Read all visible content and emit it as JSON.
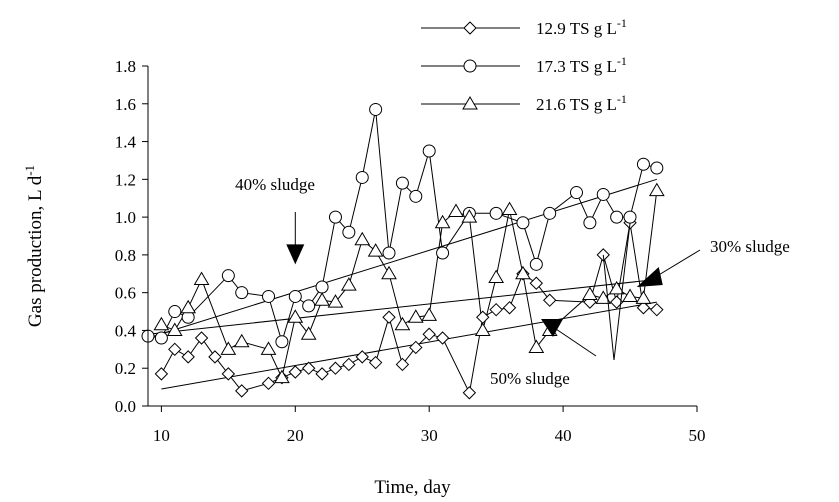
{
  "chart_data": {
    "type": "scatter",
    "xlabel": "Time, day",
    "ylabel": "Gas production, L d",
    "ylabel_sup": "-1",
    "xlim": [
      9,
      50
    ],
    "ylim": [
      0,
      1.8
    ],
    "xticks": [
      10,
      20,
      30,
      40,
      50
    ],
    "yticks": [
      0.0,
      0.2,
      0.4,
      0.6,
      0.8,
      1.0,
      1.2,
      1.4,
      1.6,
      1.8
    ],
    "ytick_labels": [
      "0.0",
      "0.2",
      "0.4",
      "0.6",
      "0.8",
      "1.0",
      "1.2",
      "1.4",
      "1.6",
      "1.8"
    ],
    "grid": false,
    "legend_position": "top-center",
    "series": [
      {
        "name": "12.9 TS g L",
        "name_sup": "-1",
        "marker": "diamond",
        "x": [
          10,
          11,
          12,
          13,
          14,
          15,
          16,
          18,
          19,
          20,
          21,
          22,
          23,
          24,
          25,
          26,
          27,
          28,
          29,
          30,
          31,
          33,
          34,
          35,
          36,
          37,
          38,
          39,
          42,
          43,
          44,
          45,
          46,
          47
        ],
        "y": [
          0.17,
          0.3,
          0.26,
          0.36,
          0.26,
          0.17,
          0.08,
          0.12,
          0.15,
          0.18,
          0.2,
          0.17,
          0.2,
          0.22,
          0.26,
          0.23,
          0.47,
          0.22,
          0.31,
          0.38,
          0.36,
          0.07,
          0.47,
          0.51,
          0.52,
          0.7,
          0.65,
          0.56,
          0.55,
          0.8,
          0.55,
          0.97,
          0.52,
          0.51
        ]
      },
      {
        "name": "17.3 TS g L",
        "name_sup": "-1",
        "marker": "circle",
        "x": [
          9,
          10,
          11,
          12,
          15,
          16,
          18,
          19,
          20,
          21,
          22,
          23,
          24,
          25,
          26,
          27,
          28,
          29,
          30,
          31,
          33,
          35,
          37,
          38,
          39,
          41,
          42,
          43,
          44,
          45,
          46,
          47
        ],
        "y": [
          0.37,
          0.36,
          0.5,
          0.47,
          0.69,
          0.6,
          0.58,
          0.34,
          0.58,
          0.53,
          0.63,
          1.0,
          0.92,
          1.21,
          1.57,
          0.81,
          1.18,
          1.11,
          1.35,
          0.81,
          1.02,
          1.02,
          0.97,
          0.75,
          1.02,
          1.13,
          0.97,
          1.12,
          1.0,
          1.0,
          1.28,
          1.26
        ]
      },
      {
        "name": "21.6 TS g L",
        "name_sup": "-1",
        "marker": "triangle",
        "x": [
          10,
          11,
          12,
          13,
          15,
          16,
          18,
          19,
          20,
          21,
          22,
          23,
          24,
          25,
          26,
          27,
          28,
          29,
          30,
          31,
          32,
          33,
          34,
          35,
          36,
          37,
          38,
          39,
          42,
          43,
          44,
          45,
          46,
          47
        ],
        "y": [
          0.43,
          0.4,
          0.52,
          0.67,
          0.3,
          0.34,
          0.3,
          0.15,
          0.47,
          0.38,
          0.56,
          0.55,
          0.64,
          0.88,
          0.82,
          0.7,
          0.43,
          0.47,
          0.48,
          0.97,
          1.03,
          1.0,
          0.4,
          0.68,
          1.04,
          0.7,
          0.31,
          0.4,
          0.59,
          0.57,
          0.62,
          0.58,
          0.57,
          1.14
        ]
      }
    ],
    "trendlines": [
      {
        "x": [
          9,
          47
        ],
        "y": [
          0.36,
          1.2
        ]
      },
      {
        "x": [
          9,
          47
        ],
        "y": [
          0.38,
          0.67
        ]
      },
      {
        "x": [
          10,
          47
        ],
        "y": [
          0.09,
          0.55
        ]
      }
    ],
    "annotations": [
      {
        "text": "40%  sludge",
        "text_x": 20,
        "text_y": 1.16,
        "arrow_x": 20,
        "arrow_y": 0.75
      },
      {
        "text": "30%  sludge",
        "text_x": 54,
        "text_y": 0.8,
        "arrow_x": 45.5,
        "arrow_y": 0.63
      },
      {
        "text": "50%  sludge",
        "text_x": 40.5,
        "text_y": 0.13,
        "arrow_x": 38.5,
        "arrow_y": 0.45
      }
    ]
  }
}
